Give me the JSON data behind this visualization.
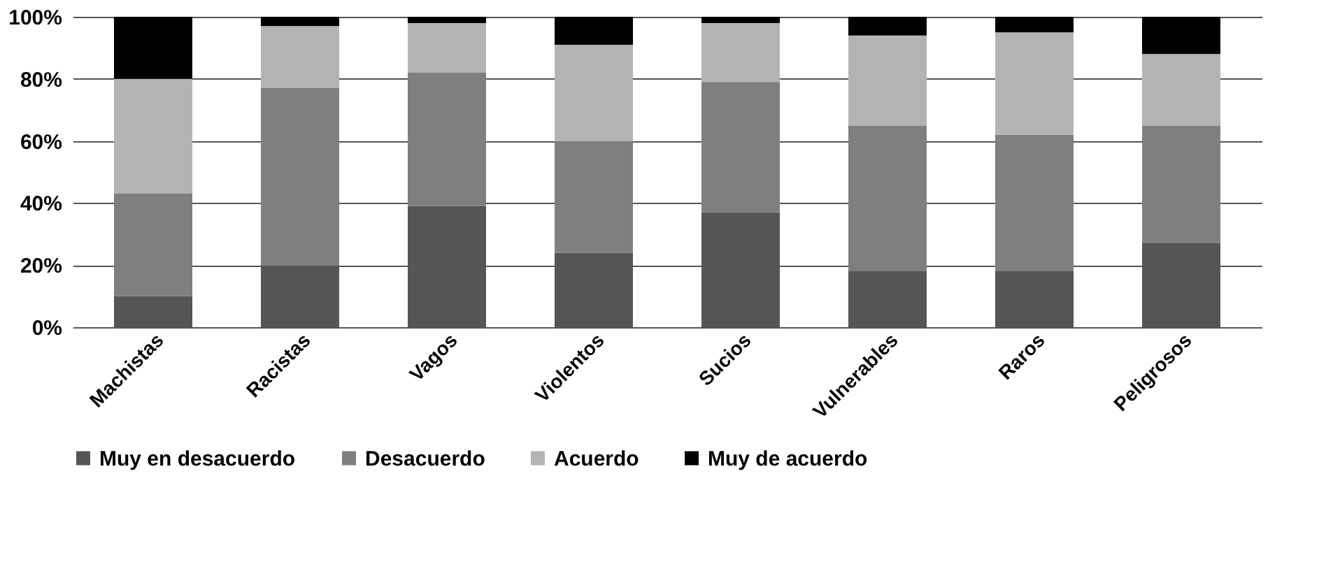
{
  "chart_data": {
    "type": "bar",
    "stacked": true,
    "categories": [
      "Machistas",
      "Racistas",
      "Vagos",
      "Violentos",
      "Sucios",
      "Vulnerables",
      "Raros",
      "Peligrosos"
    ],
    "series": [
      {
        "name": "Muy en desacuerdo",
        "color": "#555555",
        "values": [
          10,
          20,
          39,
          24,
          37,
          18,
          18,
          27
        ]
      },
      {
        "name": "Desacuerdo",
        "color": "#7f7f7f",
        "values": [
          33,
          57,
          43,
          36,
          42,
          47,
          44,
          38
        ]
      },
      {
        "name": "Acuerdo",
        "color": "#b3b3b3",
        "values": [
          37,
          20,
          16,
          31,
          19,
          29,
          33,
          23
        ]
      },
      {
        "name": "Muy de acuerdo",
        "color": "#000000",
        "values": [
          20,
          3,
          2,
          9,
          2,
          6,
          5,
          12
        ]
      }
    ],
    "ylim": [
      0,
      100
    ],
    "yticks": [
      {
        "value": 0,
        "label": "0%"
      },
      {
        "value": 20,
        "label": "20%"
      },
      {
        "value": 40,
        "label": "40%"
      },
      {
        "value": 60,
        "label": "60%"
      },
      {
        "value": 80,
        "label": "80%"
      },
      {
        "value": 100,
        "label": "100%"
      }
    ],
    "grid": "y",
    "legend": "bottom"
  }
}
